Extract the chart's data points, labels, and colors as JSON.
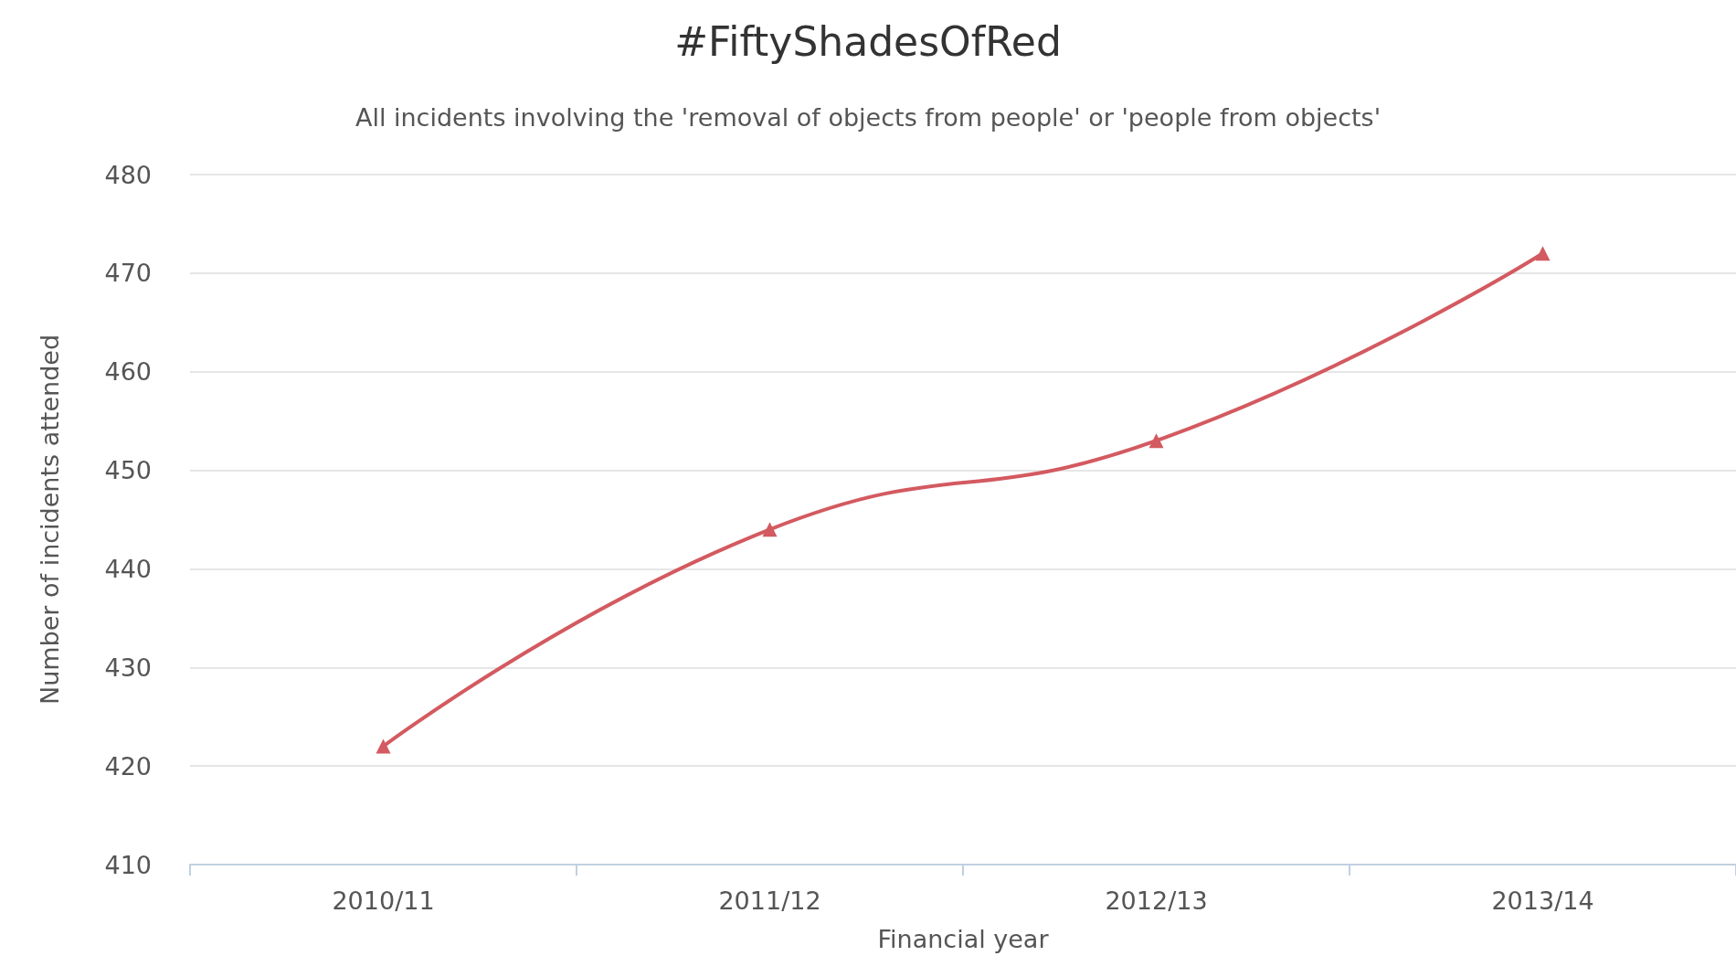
{
  "chart_data": {
    "type": "line",
    "title": "#FiftyShadesOfRed",
    "subtitle": "All incidents involving the 'removal of objects from people' or 'people from objects'",
    "xlabel": "Financial year",
    "ylabel": "Number of incidents attended",
    "categories": [
      "2010/11",
      "2011/12",
      "2012/13",
      "2013/14"
    ],
    "series": [
      {
        "color": "#d35a60",
        "values": [
          422,
          444,
          453,
          472
        ]
      }
    ],
    "ylim": [
      410,
      480
    ],
    "yticks": [
      410,
      420,
      430,
      440,
      450,
      460,
      470,
      480
    ],
    "grid": "y",
    "marker": "triangle",
    "line_style": "solid"
  }
}
